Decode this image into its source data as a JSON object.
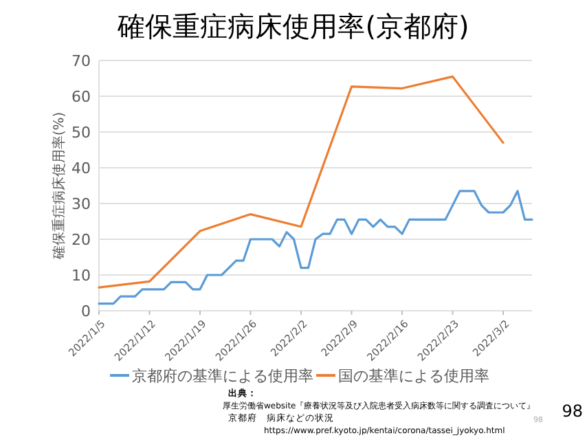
{
  "chart_data": {
    "type": "line",
    "title": "確保重症病床使用率(京都府)",
    "ylabel": "確保重症病床使用率(%)",
    "xlim": [
      "2022-01-05",
      "2022-03-06"
    ],
    "xticks": [
      {
        "value": "2022-01-05",
        "label": "2022/1/5"
      },
      {
        "value": "2022-01-12",
        "label": "2022/1/12"
      },
      {
        "value": "2022-01-19",
        "label": "2022/1/19"
      },
      {
        "value": "2022-01-26",
        "label": "2022/1/26"
      },
      {
        "value": "2022-02-02",
        "label": "2022/2/2"
      },
      {
        "value": "2022-02-09",
        "label": "2022/2/9"
      },
      {
        "value": "2022-02-16",
        "label": "2022/2/16"
      },
      {
        "value": "2022-02-23",
        "label": "2022/2/23"
      },
      {
        "value": "2022-03-02",
        "label": "2022/3/2"
      }
    ],
    "ylim": [
      0,
      70
    ],
    "yticks": [
      0,
      10,
      20,
      30,
      40,
      50,
      60,
      70
    ],
    "grid": "y",
    "legend": "bottom",
    "marker": "none",
    "line_style": "solid",
    "series": [
      {
        "name": "京都府の基準による使用率",
        "color": "#5b9bd5",
        "x": [
          "2022-01-05",
          "2022-01-06",
          "2022-01-07",
          "2022-01-08",
          "2022-01-09",
          "2022-01-10",
          "2022-01-11",
          "2022-01-12",
          "2022-01-13",
          "2022-01-14",
          "2022-01-15",
          "2022-01-16",
          "2022-01-17",
          "2022-01-18",
          "2022-01-19",
          "2022-01-20",
          "2022-01-21",
          "2022-01-22",
          "2022-01-23",
          "2022-01-24",
          "2022-01-25",
          "2022-01-26",
          "2022-01-27",
          "2022-01-28",
          "2022-01-29",
          "2022-01-30",
          "2022-01-31",
          "2022-02-01",
          "2022-02-02",
          "2022-02-03",
          "2022-02-04",
          "2022-02-05",
          "2022-02-06",
          "2022-02-07",
          "2022-02-08",
          "2022-02-09",
          "2022-02-10",
          "2022-02-11",
          "2022-02-12",
          "2022-02-13",
          "2022-02-14",
          "2022-02-15",
          "2022-02-16",
          "2022-02-17",
          "2022-02-18",
          "2022-02-19",
          "2022-02-20",
          "2022-02-21",
          "2022-02-22",
          "2022-02-23",
          "2022-02-24",
          "2022-02-25",
          "2022-02-26",
          "2022-02-27",
          "2022-02-28",
          "2022-03-01",
          "2022-03-02",
          "2022-03-03",
          "2022-03-04",
          "2022-03-05",
          "2022-03-06"
        ],
        "values": [
          2,
          2,
          2,
          4,
          4,
          4,
          6,
          6,
          6,
          6,
          8,
          8,
          8,
          6,
          6,
          10,
          10,
          10,
          12,
          14,
          14,
          20,
          20,
          20,
          20,
          18,
          22,
          20,
          12,
          12,
          20,
          21.5,
          21.5,
          25.5,
          25.5,
          21.5,
          25.5,
          25.5,
          23.5,
          25.5,
          23.5,
          23.5,
          21.5,
          25.5,
          25.5,
          25.5,
          25.5,
          25.5,
          25.5,
          29.5,
          33.5,
          33.5,
          33.5,
          29.5,
          27.5,
          27.5,
          27.5,
          29.5,
          33.5,
          25.5,
          25.5
        ]
      },
      {
        "name": "国の基準による使用率",
        "color": "#ed7d31",
        "x": [
          "2022-01-05",
          "2022-01-12",
          "2022-01-19",
          "2022-01-26",
          "2022-02-02",
          "2022-02-09",
          "2022-02-16",
          "2022-02-23",
          "2022-03-02"
        ],
        "values": [
          6.5,
          8.2,
          22.3,
          27,
          23.5,
          62.7,
          62.2,
          65.5,
          47
        ]
      }
    ],
    "annotations": [
      "出典：",
      "厚生労働省website『療養状況等及び入院患者受入病床数等に関する調査について』",
      "京都府　病床などの状況",
      "https://www.pref.kyoto.jp/kentai/corona/tassei_jyokyo.html",
      "98",
      "98"
    ]
  }
}
